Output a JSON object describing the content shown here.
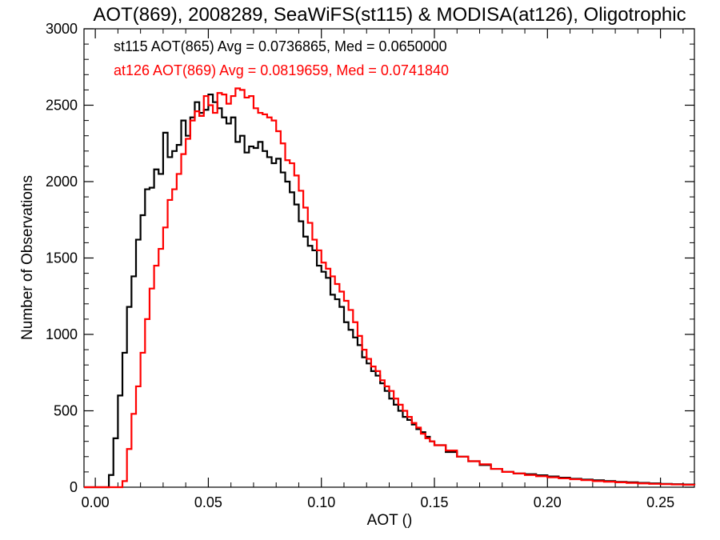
{
  "chart_data": {
    "type": "line",
    "title": "AOT(869), 2008289, SeaWiFS(st115) & MODISA(at126), Oligotrophic",
    "xlabel": "AOT ()",
    "ylabel": "Number of Observations",
    "xlim": [
      -0.005,
      0.265
    ],
    "ylim": [
      0,
      3000
    ],
    "xticks": [
      {
        "value": 0.0,
        "label": "0.00"
      },
      {
        "value": 0.05,
        "label": "0.05"
      },
      {
        "value": 0.1,
        "label": "0.10"
      },
      {
        "value": 0.15,
        "label": "0.15"
      },
      {
        "value": 0.2,
        "label": "0.20"
      },
      {
        "value": 0.25,
        "label": "0.25"
      }
    ],
    "yticks": [
      {
        "value": 0,
        "label": "0"
      },
      {
        "value": 500,
        "label": "500"
      },
      {
        "value": 1000,
        "label": "1000"
      },
      {
        "value": 1500,
        "label": "1500"
      },
      {
        "value": 2000,
        "label": "2000"
      },
      {
        "value": 2500,
        "label": "2500"
      },
      {
        "value": 3000,
        "label": "3000"
      }
    ],
    "step_style": "histogram",
    "grid": false,
    "legend_position": "top-left",
    "series": [
      {
        "name": "st115 AOT(865) Avg = 0.0736865, Med = 0.0650000",
        "color": "#000000",
        "x": [
          -0.005,
          0.004,
          0.006,
          0.008,
          0.01,
          0.012,
          0.014,
          0.016,
          0.018,
          0.02,
          0.022,
          0.024,
          0.026,
          0.028,
          0.03,
          0.032,
          0.034,
          0.036,
          0.038,
          0.04,
          0.042,
          0.044,
          0.046,
          0.048,
          0.05,
          0.052,
          0.054,
          0.056,
          0.058,
          0.06,
          0.062,
          0.064,
          0.066,
          0.068,
          0.07,
          0.072,
          0.074,
          0.076,
          0.078,
          0.08,
          0.082,
          0.084,
          0.086,
          0.088,
          0.09,
          0.092,
          0.094,
          0.096,
          0.098,
          0.1,
          0.102,
          0.104,
          0.106,
          0.108,
          0.11,
          0.112,
          0.114,
          0.116,
          0.118,
          0.12,
          0.122,
          0.124,
          0.126,
          0.128,
          0.13,
          0.132,
          0.134,
          0.136,
          0.138,
          0.14,
          0.142,
          0.144,
          0.146,
          0.148,
          0.15,
          0.155,
          0.16,
          0.165,
          0.17,
          0.175,
          0.18,
          0.185,
          0.19,
          0.195,
          0.2,
          0.205,
          0.21,
          0.215,
          0.22,
          0.225,
          0.23,
          0.235,
          0.24,
          0.245,
          0.25,
          0.255,
          0.26,
          0.265
        ],
        "y": [
          0,
          0,
          80,
          320,
          600,
          880,
          1180,
          1380,
          1620,
          1780,
          1950,
          1960,
          2080,
          2050,
          2320,
          2160,
          2200,
          2240,
          2400,
          2300,
          2420,
          2520,
          2450,
          2470,
          2570,
          2520,
          2480,
          2420,
          2380,
          2420,
          2260,
          2300,
          2190,
          2230,
          2220,
          2260,
          2200,
          2160,
          2120,
          2150,
          2060,
          2000,
          1930,
          1850,
          1740,
          1640,
          1580,
          1550,
          1450,
          1410,
          1370,
          1260,
          1230,
          1180,
          1080,
          1030,
          980,
          930,
          850,
          810,
          760,
          730,
          680,
          630,
          580,
          540,
          500,
          460,
          440,
          410,
          380,
          360,
          330,
          300,
          275,
          230,
          200,
          170,
          145,
          120,
          100,
          90,
          85,
          78,
          70,
          62,
          55,
          50,
          45,
          40,
          35,
          32,
          28,
          25,
          22,
          20,
          18,
          15
        ]
      },
      {
        "name": "at126 AOT(869) Avg = 0.0819659, Med = 0.0741840",
        "color": "#ff0000",
        "x": [
          -0.005,
          0.01,
          0.012,
          0.014,
          0.016,
          0.018,
          0.02,
          0.022,
          0.024,
          0.026,
          0.028,
          0.03,
          0.032,
          0.034,
          0.036,
          0.038,
          0.04,
          0.042,
          0.044,
          0.046,
          0.048,
          0.05,
          0.052,
          0.054,
          0.056,
          0.058,
          0.06,
          0.062,
          0.064,
          0.066,
          0.068,
          0.07,
          0.072,
          0.074,
          0.076,
          0.078,
          0.08,
          0.082,
          0.084,
          0.086,
          0.088,
          0.09,
          0.092,
          0.094,
          0.096,
          0.098,
          0.1,
          0.102,
          0.104,
          0.106,
          0.108,
          0.11,
          0.112,
          0.114,
          0.116,
          0.118,
          0.12,
          0.122,
          0.124,
          0.126,
          0.128,
          0.13,
          0.132,
          0.134,
          0.136,
          0.138,
          0.14,
          0.142,
          0.144,
          0.146,
          0.148,
          0.15,
          0.155,
          0.16,
          0.165,
          0.17,
          0.175,
          0.18,
          0.185,
          0.19,
          0.195,
          0.2,
          0.205,
          0.21,
          0.215,
          0.22,
          0.225,
          0.23,
          0.235,
          0.24,
          0.245,
          0.25,
          0.255,
          0.26,
          0.265
        ],
        "y": [
          0,
          0,
          40,
          250,
          480,
          660,
          880,
          1100,
          1300,
          1450,
          1560,
          1700,
          1880,
          1950,
          2050,
          2180,
          2280,
          2400,
          2460,
          2430,
          2560,
          2500,
          2450,
          2580,
          2570,
          2510,
          2560,
          2610,
          2600,
          2550,
          2560,
          2480,
          2450,
          2440,
          2420,
          2400,
          2330,
          2250,
          2140,
          2120,
          2040,
          1940,
          1830,
          1730,
          1620,
          1550,
          1470,
          1430,
          1380,
          1330,
          1280,
          1220,
          1160,
          1080,
          990,
          900,
          840,
          790,
          760,
          700,
          660,
          630,
          580,
          540,
          500,
          460,
          420,
          390,
          350,
          320,
          300,
          275,
          240,
          200,
          170,
          150,
          120,
          100,
          90,
          80,
          72,
          65,
          58,
          52,
          46,
          40,
          36,
          32,
          28,
          25,
          22,
          20,
          18,
          16,
          14
        ]
      }
    ]
  }
}
